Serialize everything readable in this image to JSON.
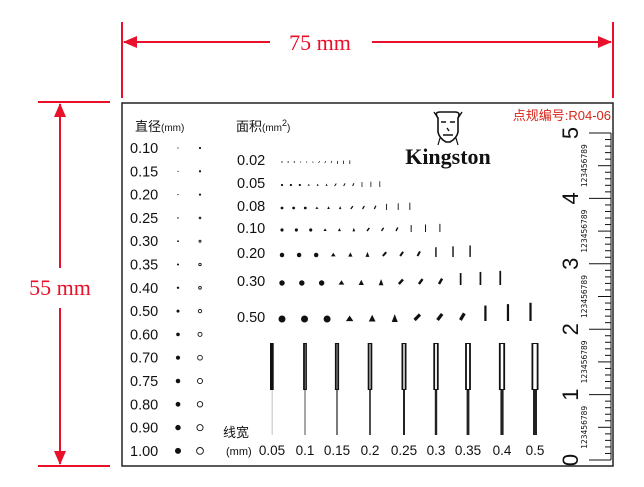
{
  "dimensions": {
    "width_label": "75 mm",
    "height_label": "55 mm",
    "line_color": "#e8102a"
  },
  "card": {
    "code_label": "点规编号:R04-06",
    "brand": "Kingston",
    "logo_icon": "kingston-head-logo"
  },
  "diameter": {
    "header_text": "直径",
    "header_unit": "(mm)",
    "values": [
      "0.10",
      "0.15",
      "0.20",
      "0.25",
      "0.30",
      "0.35",
      "0.40",
      "0.50",
      "0.60",
      "0.70",
      "0.75",
      "0.80",
      "0.90",
      "1.00"
    ]
  },
  "area": {
    "header_text": "面积",
    "header_unit": "(mm",
    "header_sup": "2",
    "header_close": ")",
    "values": [
      "0.02",
      "0.05",
      "0.08",
      "0.10",
      "0.20",
      "0.30",
      "0.50"
    ]
  },
  "linewidth": {
    "label": "线宽",
    "unit": "(mm)",
    "values": [
      "0.05",
      "0.1",
      "0.15",
      "0.2",
      "0.25",
      "0.3",
      "0.35",
      "0.4",
      "0.5"
    ]
  },
  "ruler": {
    "major_labels": [
      "0",
      "1",
      "2",
      "3",
      "4",
      "5"
    ],
    "minor_digits": "123456789"
  }
}
